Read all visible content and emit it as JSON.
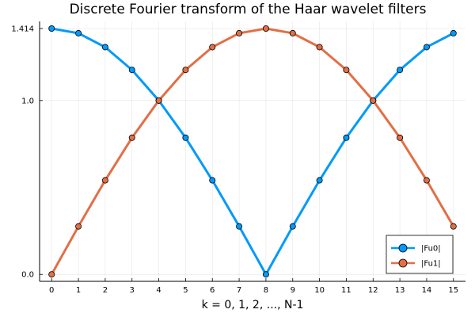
{
  "chart_data": {
    "type": "line",
    "title": "Discrete Fourier transform of the Haar wavelet filters",
    "xlabel": "k = 0, 1, 2, ..., N-1",
    "ylabel": "",
    "x": [
      0,
      1,
      2,
      3,
      4,
      5,
      6,
      7,
      8,
      9,
      10,
      11,
      12,
      13,
      14,
      15
    ],
    "xticks": [
      "0",
      "1",
      "2",
      "3",
      "4",
      "5",
      "6",
      "7",
      "8",
      "9",
      "10",
      "11",
      "12",
      "13",
      "14",
      "15"
    ],
    "yticks": [
      {
        "value": 0.0,
        "label": "0.0"
      },
      {
        "value": 1.0,
        "label": "1.0"
      },
      {
        "value": 1.414,
        "label": "1.414"
      }
    ],
    "xlim": [
      -0.45,
      15.45
    ],
    "ylim": [
      -0.04,
      1.455
    ],
    "grid": true,
    "legend_position": "bottom-right",
    "series": [
      {
        "name": "|Fu0|",
        "color": "#009AFA",
        "values": [
          1.414,
          1.387,
          1.307,
          1.176,
          1.0,
          0.786,
          0.541,
          0.276,
          0.0,
          0.276,
          0.541,
          0.786,
          1.0,
          1.176,
          1.307,
          1.387
        ]
      },
      {
        "name": "|Fu1|",
        "color": "#E26F46",
        "values": [
          0.0,
          0.276,
          0.541,
          0.786,
          1.0,
          1.176,
          1.307,
          1.387,
          1.414,
          1.387,
          1.307,
          1.176,
          1.0,
          0.786,
          0.541,
          0.276
        ]
      }
    ]
  }
}
